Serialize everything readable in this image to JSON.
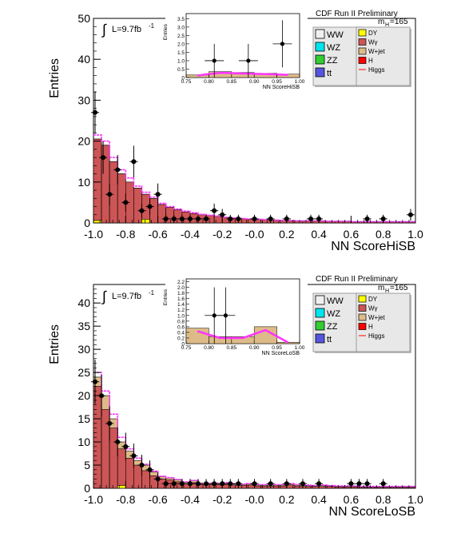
{
  "chart_data": [
    {
      "type": "bar",
      "run_label": "CDF Run II Preliminary",
      "mass_label": {
        "main": "m",
        "sub": "H",
        "rest": "=165"
      },
      "lumi": {
        "prefix": "L=9.7fb",
        "sup": "-1"
      },
      "integral_symbol": "∫",
      "ylabel": "Entries",
      "xlabel": "NN ScoreHiSB",
      "xlim": [
        -1.0,
        1.0
      ],
      "ylim": [
        0,
        50
      ],
      "xticks": [
        "-1.0",
        "-0.8",
        "-0.6",
        "-0.4",
        "-0.2",
        "-0.0",
        "0.2",
        "0.4",
        "0.6",
        "0.8",
        "1.0"
      ],
      "yticks": [
        "0",
        "10",
        "20",
        "30",
        "40",
        "50"
      ],
      "bin_edges_start": -1.0,
      "bin_width": 0.05,
      "series": [
        {
          "name": "WW",
          "color": "#f0f0f0",
          "values": [
            20.5,
            19.0,
            15.0,
            12.0,
            10.0,
            8.5,
            7.0,
            6.0,
            4.5,
            3.8,
            3.2,
            2.7,
            2.3,
            2.0,
            1.8,
            1.6,
            1.3,
            1.2,
            1.0,
            0.9,
            0.8,
            0.8,
            0.7,
            0.6,
            0.5,
            0.5,
            0.5,
            0.5,
            0.4,
            0.4,
            0.4,
            0.4,
            0.3,
            0.3,
            0.3,
            0.3,
            0.3,
            0.3,
            0.3,
            0.3
          ]
        },
        {
          "name": "Wy",
          "color": "#cc5555",
          "values": [
            20.5,
            19.0,
            15.0,
            12.0,
            10.0,
            8.5,
            7.0,
            6.0,
            4.5,
            3.8,
            3.2,
            2.7,
            2.3,
            2.0,
            1.8,
            1.6,
            1.3,
            1.2,
            1.0,
            0.9,
            0.8,
            0.8,
            0.7,
            0.6,
            0.5,
            0.5,
            0.5,
            0.5,
            0.4,
            0.4,
            0.4,
            0.4,
            0.3,
            0.3,
            0.3,
            0.3,
            0.3,
            0.3,
            0.3,
            0.3
          ]
        },
        {
          "name": "DY",
          "color": "#ffff00",
          "values": [
            0.6,
            0.0,
            0.0,
            0.0,
            0.0,
            0.0,
            0.9,
            0.0,
            0.0,
            0.0,
            0.0,
            0.0,
            0.0,
            0.0,
            0.0,
            0.0,
            0.0,
            0.0,
            0.0,
            0.0,
            0.0,
            0.0,
            0.0,
            0.0,
            0.0,
            0.0,
            0.0,
            0.0,
            0.0,
            0.0,
            0.0,
            0.0,
            0.0,
            0.0,
            0.0,
            0.0,
            0.0,
            0.0,
            0.0,
            0.0
          ]
        },
        {
          "name": "Higgs",
          "color": "#ff33ff",
          "values": [
            21.5,
            20.0,
            16.0,
            13.0,
            11.0,
            9.0,
            7.5,
            6.3,
            4.8,
            4.0,
            3.4,
            2.9,
            2.5,
            2.1,
            1.9,
            1.7,
            1.4,
            1.2,
            1.1,
            1.0,
            0.9,
            0.8,
            0.7,
            0.6,
            0.6,
            0.5,
            0.5,
            0.5,
            0.5,
            0.4,
            0.4,
            0.4,
            0.3,
            0.3,
            0.3,
            0.3,
            0.3,
            0.3,
            0.3,
            0.3
          ]
        }
      ],
      "data_points": {
        "name": "Data",
        "x": [
          -0.99,
          -0.94,
          -0.9,
          -0.85,
          -0.8,
          -0.75,
          -0.7,
          -0.65,
          -0.6,
          -0.55,
          -0.5,
          -0.45,
          -0.4,
          -0.35,
          -0.3,
          -0.25,
          -0.2,
          -0.15,
          -0.1,
          -0.0,
          0.1,
          0.2,
          0.35,
          0.4,
          0.7,
          0.8,
          0.97
        ],
        "y": [
          27,
          16,
          7,
          13,
          5,
          15,
          3,
          4,
          7,
          1,
          1,
          1,
          1,
          1,
          1,
          3,
          2,
          1,
          1,
          1,
          1,
          1,
          1,
          1,
          1,
          1,
          2
        ]
      },
      "legend": [
        {
          "name": "WW",
          "color": "#f0f0f0"
        },
        {
          "name": "WZ",
          "color": "#00e5ee"
        },
        {
          "name": "ZZ",
          "color": "#33cc33"
        },
        {
          "name": "tt",
          "color": "#5555dd"
        },
        {
          "name": "DY",
          "color": "#ffff00"
        },
        {
          "name": "Wγ",
          "color": "#cc5555"
        },
        {
          "name": "W+jet",
          "color": "#ddbb88"
        },
        {
          "name": "H",
          "color": "#ff0000"
        },
        {
          "name": "Higgs",
          "color": "#ff0000"
        }
      ],
      "inset": {
        "type": "bar",
        "ylabel": "Entries",
        "xlabel": "NN ScoreHiSB",
        "xlim": [
          0.75,
          1.0
        ],
        "ylim": [
          0,
          3.8
        ],
        "xticks": [
          "0.75",
          "0.80",
          "0.85",
          "0.90",
          "0.95",
          "1.00"
        ],
        "yticks": [
          "0",
          "0.5",
          "1.0",
          "1.5",
          "2.0",
          "2.5",
          "3.0",
          "3.5"
        ],
        "bins": [
          0.75,
          0.8,
          0.85,
          0.9,
          0.95,
          1.0
        ],
        "background": [
          0.15,
          0.35,
          0.3,
          0.25,
          0.2
        ],
        "data_points": {
          "x": [
            0.812,
            0.887,
            0.962
          ],
          "y": [
            1.0,
            1.0,
            2.0
          ],
          "yerr": [
            1.0,
            1.0,
            1.4
          ]
        }
      }
    },
    {
      "type": "bar",
      "run_label": "CDF Run II Preliminary",
      "mass_label": {
        "main": "m",
        "sub": "H",
        "rest": "=165"
      },
      "lumi": {
        "prefix": "L=9.7fb",
        "sup": "-1"
      },
      "integral_symbol": "∫",
      "ylabel": "Entries",
      "xlabel": "NN ScoreLoSB",
      "xlim": [
        -1.0,
        1.0
      ],
      "ylim": [
        0,
        44
      ],
      "xticks": [
        "-1.0",
        "-0.8",
        "-0.6",
        "-0.4",
        "-0.2",
        "-0.0",
        "0.2",
        "0.4",
        "0.6",
        "0.8",
        "1.0"
      ],
      "yticks": [
        "0",
        "5",
        "10",
        "15",
        "20",
        "25",
        "30",
        "35",
        "40"
      ],
      "bin_edges_start": -1.0,
      "bin_width": 0.05,
      "series": [
        {
          "name": "WW",
          "color": "#f0f0f0",
          "values": [
            24.0,
            20.0,
            15.0,
            10.0,
            8.0,
            6.0,
            5.0,
            3.5,
            2.5,
            2.2,
            1.8,
            1.3,
            1.6,
            1.0,
            1.0,
            1.0,
            1.1,
            0.9,
            0.8,
            0.9,
            0.7,
            0.7,
            0.7,
            0.7,
            0.9,
            0.7,
            0.6,
            0.5,
            0.6,
            0.5,
            0.4,
            0.4,
            0.4,
            0.3,
            0.3,
            0.3,
            0.3,
            0.3,
            0.3,
            0.3
          ]
        },
        {
          "name": "Wy",
          "color": "#cc5555",
          "values": [
            22.0,
            17.0,
            13.0,
            8.5,
            6.5,
            5.0,
            3.8,
            2.7,
            2.0,
            1.8,
            1.4,
            1.0,
            1.2,
            0.8,
            0.8,
            0.8,
            0.8,
            0.7,
            0.6,
            0.7,
            0.5,
            0.5,
            0.5,
            0.5,
            0.7,
            0.5,
            0.4,
            0.4,
            0.4,
            0.4,
            0.3,
            0.3,
            0.3,
            0.2,
            0.2,
            0.2,
            0.2,
            0.2,
            0.2,
            0.2
          ]
        },
        {
          "name": "DY",
          "color": "#ffff00",
          "values": [
            0.0,
            0.0,
            0.0,
            0.6,
            0.0,
            0.0,
            0.0,
            0.0,
            0.0,
            0.0,
            0.0,
            0.0,
            0.0,
            0.0,
            0.0,
            0.0,
            0.0,
            0.0,
            0.0,
            0.0,
            0.0,
            0.0,
            0.0,
            0.0,
            0.0,
            0.0,
            0.0,
            0.0,
            0.0,
            0.0,
            0.0,
            0.0,
            0.0,
            0.0,
            0.0,
            0.0,
            0.0,
            0.0,
            0.0,
            0.0
          ]
        },
        {
          "name": "Higgs",
          "color": "#ff33ff",
          "values": [
            25.0,
            21.0,
            16.0,
            11.0,
            8.5,
            6.5,
            5.2,
            3.7,
            2.6,
            2.3,
            1.9,
            1.4,
            1.7,
            1.1,
            1.1,
            1.1,
            1.2,
            1.0,
            0.9,
            1.0,
            0.8,
            0.8,
            0.8,
            0.8,
            1.0,
            0.8,
            0.7,
            0.6,
            0.7,
            0.6,
            0.5,
            0.5,
            0.5,
            0.4,
            0.4,
            0.4,
            0.4,
            0.4,
            0.4,
            0.4
          ]
        }
      ],
      "data_points": {
        "name": "Data",
        "x": [
          -0.99,
          -0.95,
          -0.9,
          -0.85,
          -0.8,
          -0.75,
          -0.7,
          -0.65,
          -0.6,
          -0.55,
          -0.5,
          -0.45,
          -0.4,
          -0.35,
          -0.3,
          -0.25,
          -0.2,
          -0.15,
          -0.1,
          0.0,
          0.1,
          0.2,
          0.3,
          0.4,
          0.6,
          0.65,
          0.7,
          0.8
        ],
        "y": [
          23,
          20,
          14,
          10,
          9,
          7,
          5,
          4,
          2,
          1,
          1,
          1,
          1,
          1,
          1,
          1,
          1,
          1,
          1,
          1,
          1,
          1,
          1,
          1,
          1,
          1,
          1,
          1
        ]
      },
      "legend": [
        {
          "name": "WW",
          "color": "#f0f0f0"
        },
        {
          "name": "WZ",
          "color": "#00e5ee"
        },
        {
          "name": "ZZ",
          "color": "#33cc33"
        },
        {
          "name": "tt",
          "color": "#5555dd"
        },
        {
          "name": "DY",
          "color": "#ffff00"
        },
        {
          "name": "Wγ",
          "color": "#cc5555"
        },
        {
          "name": "W+jet",
          "color": "#ddbb88"
        },
        {
          "name": "H",
          "color": "#ff0000"
        },
        {
          "name": "Higgs",
          "color": "#ff0000"
        }
      ],
      "inset": {
        "type": "bar",
        "ylabel": "Entries",
        "xlabel": "NN ScoreLoSB",
        "xlim": [
          0.75,
          1.0
        ],
        "ylim": [
          0,
          2.3
        ],
        "xticks": [
          "0.75",
          "0.80",
          "0.85",
          "0.90",
          "0.95",
          "1.00"
        ],
        "yticks": [
          "0",
          "0.2",
          "0.4",
          "0.6",
          "0.8",
          "1.0",
          "1.2",
          "1.4",
          "1.6",
          "1.8",
          "2.0",
          "2.2"
        ],
        "bins": [
          0.75,
          0.8,
          0.85,
          0.9,
          0.95,
          1.0
        ],
        "background": [
          0.55,
          0.25,
          0.25,
          0.6,
          0.05
        ],
        "data_points": {
          "x": [
            0.812,
            0.837
          ],
          "y": [
            1.0,
            1.0
          ],
          "yerr": [
            1.0,
            1.0
          ]
        }
      }
    }
  ]
}
